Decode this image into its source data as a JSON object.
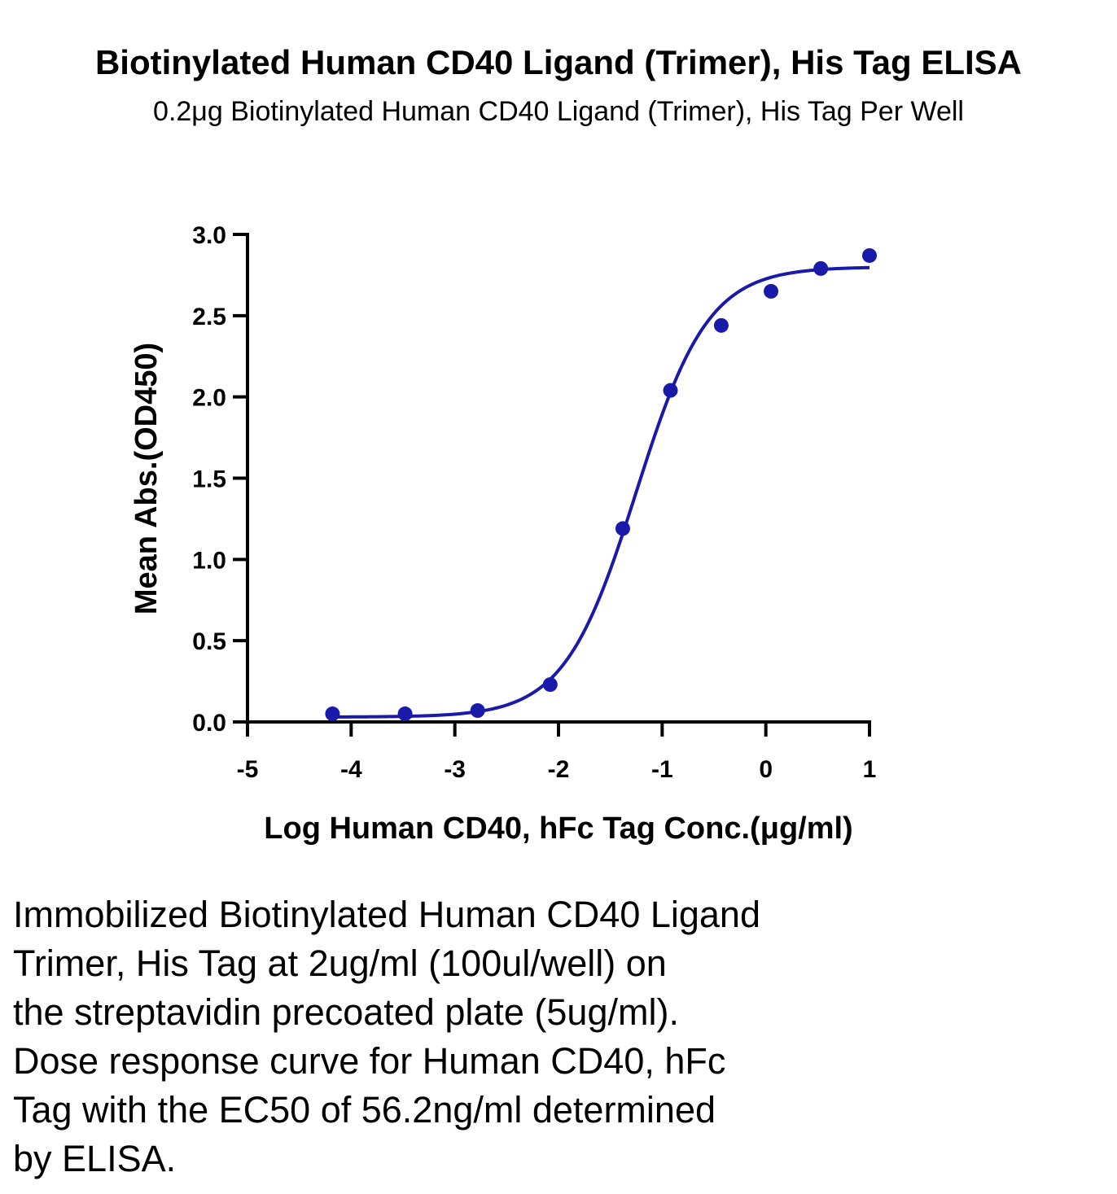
{
  "title": "Biotinylated Human CD40 Ligand (Trimer), His Tag ELISA",
  "subtitle": "0.2μg Biotinylated Human CD40 Ligand (Trimer), His Tag Per Well",
  "caption_lines": [
    "Immobilized Biotinylated Human CD40 Ligand",
    "Trimer, His Tag at 2ug/ml (100ul/well) on",
    "the streptavidin precoated plate (5ug/ml).",
    "Dose response curve for Human CD40, hFc",
    "Tag with the EC50 of 56.2ng/ml determined",
    "by ELISA."
  ],
  "chart_data": {
    "type": "scatter",
    "xlabel": "Log Human CD40, hFc Tag Conc.(μg/ml)",
    "ylabel": "Mean Abs.(OD450)",
    "xlim": [
      -5,
      1
    ],
    "ylim": [
      0,
      3.0
    ],
    "xticks": [
      "-5",
      "-4",
      "-3",
      "-2",
      "-1",
      "0",
      "1"
    ],
    "yticks": [
      "0.0",
      "0.5",
      "1.0",
      "1.5",
      "2.0",
      "2.5",
      "3.0"
    ],
    "grid": false,
    "color": "#1a1aaa",
    "series": [
      {
        "x": [
          -4.18,
          -3.48,
          -2.78,
          -2.08,
          -1.38,
          -0.92,
          -0.43,
          0.05,
          0.53,
          1.0
        ],
        "y": [
          0.05,
          0.05,
          0.07,
          0.23,
          1.19,
          2.04,
          2.44,
          2.65,
          2.79,
          2.87
        ],
        "fit": {
          "model": "4PL",
          "bottom": 0.03,
          "top": 2.8,
          "log_ec50": -1.25,
          "hill": 1.25,
          "x_range": [
            -4.18,
            1.0
          ]
        }
      }
    ]
  }
}
